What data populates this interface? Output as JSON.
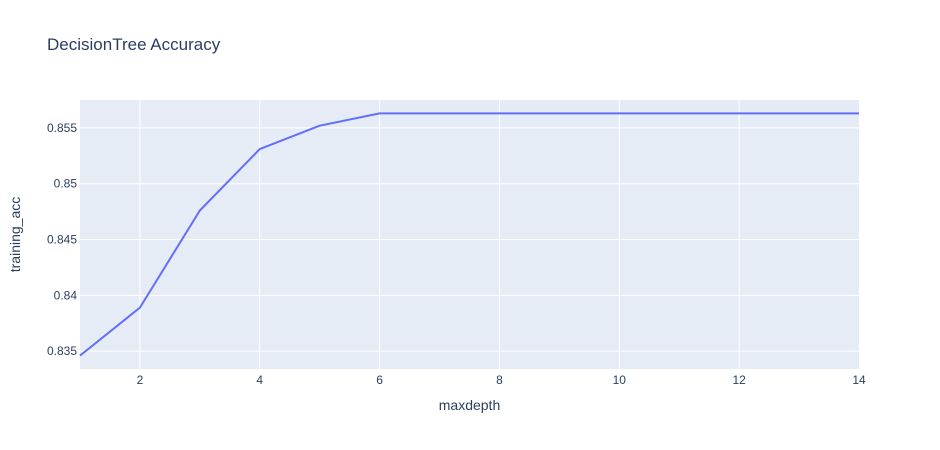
{
  "chart_data": {
    "type": "line",
    "title": "DecisionTree Accuracy",
    "xlabel": "maxdepth",
    "ylabel": "training_acc",
    "xlim": [
      1,
      14
    ],
    "ylim": [
      0.8334,
      0.8575
    ],
    "x_ticks": [
      2,
      4,
      6,
      8,
      10,
      12,
      14
    ],
    "y_ticks": [
      0.835,
      0.84,
      0.845,
      0.85,
      0.855
    ],
    "y_tick_labels": [
      "0.835",
      "0.84",
      "0.845",
      "0.85",
      "0.855"
    ],
    "grid": true,
    "colors": {
      "line": "#636efa",
      "plot_bg": "#e5ecf6",
      "grid": "#ffffff",
      "text": "#2a3f5f"
    },
    "series": [
      {
        "x": [
          1,
          2,
          3,
          4,
          5,
          6,
          7,
          8,
          9,
          10,
          11,
          12,
          13,
          14
        ],
        "values": [
          0.8346,
          0.8389,
          0.8476,
          0.8531,
          0.8552,
          0.8563,
          0.8563,
          0.8563,
          0.8563,
          0.8563,
          0.8563,
          0.8563,
          0.8563,
          0.8563
        ]
      }
    ]
  }
}
